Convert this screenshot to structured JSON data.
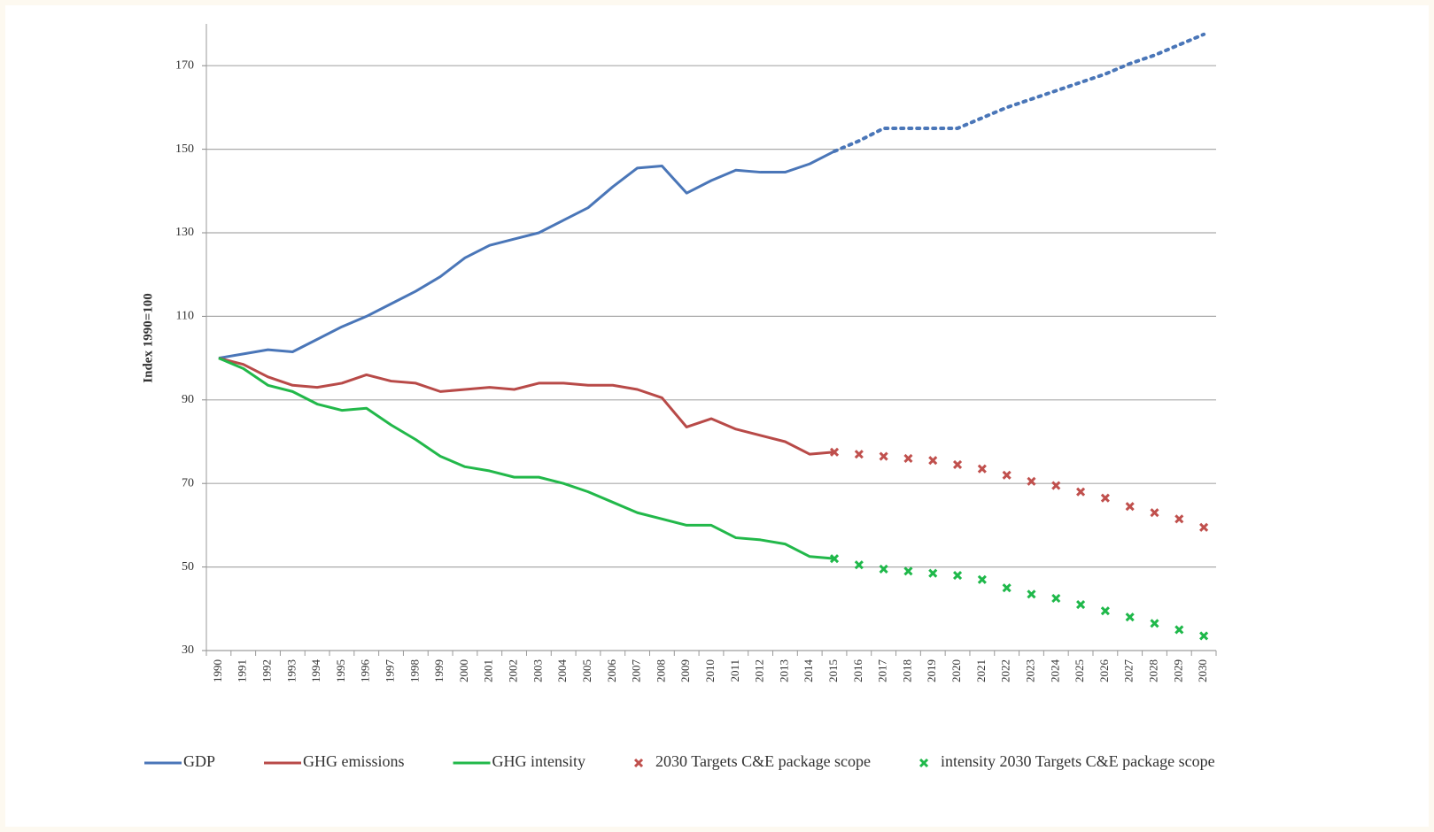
{
  "chart_data": {
    "type": "line",
    "ylabel": "Index 1990=100",
    "categories": [
      "1990",
      "1991",
      "1992",
      "1993",
      "1994",
      "1995",
      "1996",
      "1997",
      "1998",
      "1999",
      "2000",
      "2001",
      "2002",
      "2003",
      "2004",
      "2005",
      "2006",
      "2007",
      "2008",
      "2009",
      "2010",
      "2011",
      "2012",
      "2013",
      "2014",
      "2015",
      "2016",
      "2017",
      "2018",
      "2019",
      "2020",
      "2021",
      "2022",
      "2023",
      "2024",
      "2025",
      "2026",
      "2027",
      "2028",
      "2029",
      "2030"
    ],
    "ylim": [
      30,
      180
    ],
    "yticks": [
      30,
      50,
      70,
      90,
      110,
      130,
      150,
      170
    ],
    "grid": true,
    "legend": "bottom",
    "series": [
      {
        "name": "GDP",
        "color": "#4a76b8",
        "style": "solid",
        "values": [
          100,
          101,
          102,
          101.5,
          104.5,
          107.5,
          110,
          113,
          116,
          119.5,
          124,
          127,
          128.5,
          130,
          133,
          136,
          141,
          145.5,
          146,
          139.5,
          142.5,
          145,
          144.5,
          144.5,
          146.5,
          149.5,
          null,
          null,
          null,
          null,
          null,
          null,
          null,
          null,
          null,
          null,
          null,
          null,
          null,
          null,
          null
        ]
      },
      {
        "color": "#4a76b8",
        "style": "dotted",
        "values": [
          null,
          null,
          null,
          null,
          null,
          null,
          null,
          null,
          null,
          null,
          null,
          null,
          null,
          null,
          null,
          null,
          null,
          null,
          null,
          null,
          null,
          null,
          null,
          null,
          null,
          149.5,
          152,
          155,
          155,
          155,
          155,
          157.5,
          160,
          162,
          164,
          166,
          168,
          170.5,
          172.5,
          175,
          177.5
        ]
      },
      {
        "name": "GHG emissions",
        "color": "#b84a48",
        "style": "solid",
        "values": [
          100,
          98.5,
          95.5,
          93.5,
          93,
          94,
          96,
          94.5,
          94,
          92,
          92.5,
          93,
          92.5,
          94,
          94,
          93.5,
          93.5,
          92.5,
          90.5,
          83.5,
          85.5,
          83,
          81.5,
          80,
          77,
          77.5,
          null,
          null,
          null,
          null,
          null,
          null,
          null,
          null,
          null,
          null,
          null,
          null,
          null,
          null,
          null
        ]
      },
      {
        "name": "GHG intensity",
        "color": "#22b84a",
        "style": "solid",
        "values": [
          100,
          97.5,
          93.5,
          92,
          89,
          87.5,
          88,
          84,
          80.5,
          76.5,
          74,
          73,
          71.5,
          71.5,
          70,
          68,
          65.5,
          63,
          61.5,
          60,
          60,
          57,
          56.5,
          55.5,
          52.5,
          52,
          null,
          null,
          null,
          null,
          null,
          null,
          null,
          null,
          null,
          null,
          null,
          null,
          null,
          null,
          null
        ]
      },
      {
        "name": "2030 Targets C&E package scope",
        "color": "#c0504d",
        "style": "markers",
        "values": [
          null,
          null,
          null,
          null,
          null,
          null,
          null,
          null,
          null,
          null,
          null,
          null,
          null,
          null,
          null,
          null,
          null,
          null,
          null,
          null,
          null,
          null,
          null,
          null,
          null,
          77.5,
          77,
          76.5,
          76,
          75.5,
          74.5,
          73.5,
          72,
          70.5,
          69.5,
          68,
          66.5,
          64.5,
          63,
          61.5,
          59.5
        ]
      },
      {
        "name": "intensity 2030 Targets C&E package scope",
        "color": "#1fb84a",
        "style": "markers",
        "values": [
          null,
          null,
          null,
          null,
          null,
          null,
          null,
          null,
          null,
          null,
          null,
          null,
          null,
          null,
          null,
          null,
          null,
          null,
          null,
          null,
          null,
          null,
          null,
          null,
          null,
          52,
          50.5,
          49.5,
          49,
          48.5,
          48,
          47,
          45,
          43.5,
          42.5,
          41,
          39.5,
          38,
          36.5,
          35,
          33.5
        ]
      }
    ]
  }
}
